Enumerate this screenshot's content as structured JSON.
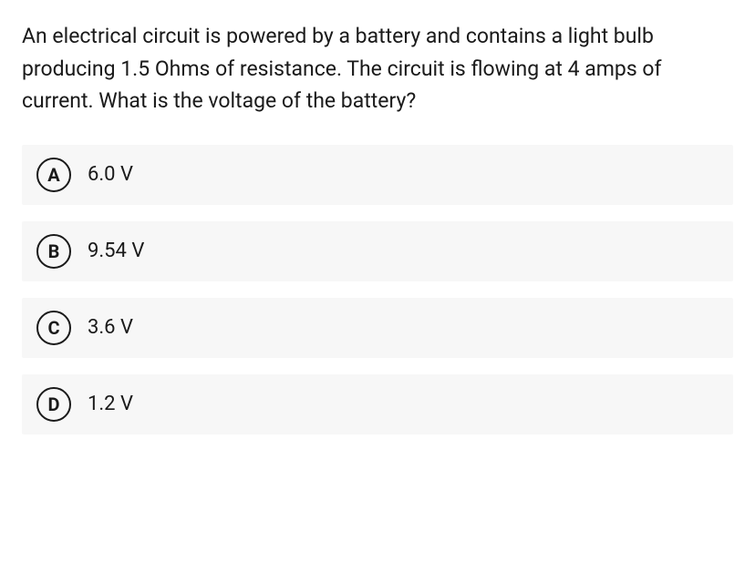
{
  "question": {
    "text": "An electrical circuit is powered by a battery and contains a light bulb producing 1.5 Ohms of resistance. The circuit is flowing at 4 amps of current. What is the voltage of the battery?",
    "text_color": "#1a1a1a",
    "font_size": 23
  },
  "options": [
    {
      "letter": "A",
      "label": "6.0 V"
    },
    {
      "letter": "B",
      "label": "9.54 V"
    },
    {
      "letter": "C",
      "label": "3.6 V"
    },
    {
      "letter": "D",
      "label": "1.2 V"
    }
  ],
  "styling": {
    "option_background": "#f7f7f7",
    "circle_border_color": "#1a1a1a",
    "circle_border_width": 2.5,
    "option_font_size": 22,
    "letter_font_size": 20,
    "page_background": "#ffffff"
  }
}
